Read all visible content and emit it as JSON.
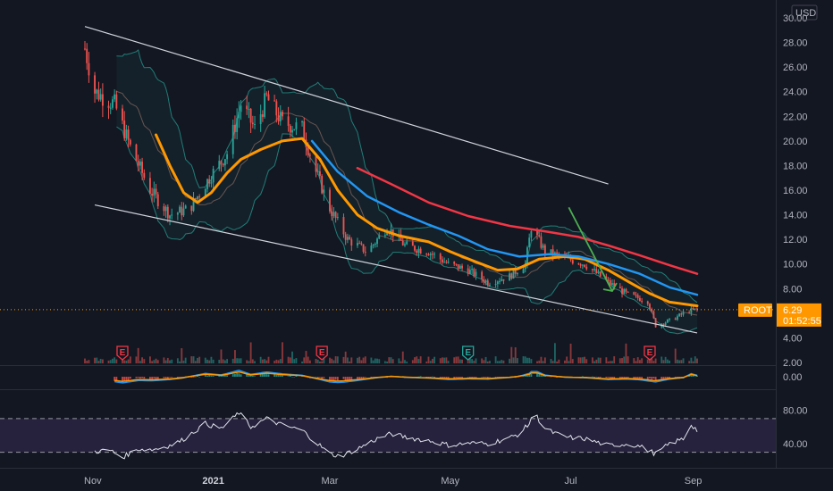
{
  "currency": "USD",
  "symbol_badge": {
    "symbol": "ROOT",
    "price": "6.29",
    "countdown": "01:52:55",
    "color": "#ff9800"
  },
  "colors": {
    "background": "#131722",
    "up": "#26a69a",
    "down": "#ef5350",
    "ema_fast": "#ff9800",
    "ema_mid": "#2196f3",
    "ema_slow": "#f23645",
    "bollinger": "#26a69a",
    "channel": "#d1d4dc",
    "arrow": "#4caf50",
    "rsi_band": "#7e57c2"
  },
  "earnings_markers": [
    {
      "label": "E",
      "date": "2020-11-16",
      "color": "#f23645"
    },
    {
      "label": "E",
      "date": "2021-02-25",
      "color": "#f23645"
    },
    {
      "label": "E",
      "date": "2021-05-10",
      "color": "#26a69a"
    },
    {
      "label": "E",
      "date": "2021-08-10",
      "color": "#f23645"
    }
  ],
  "chart_data": [
    {
      "type": "candlestick",
      "title": "",
      "x_range": [
        "2020-10-28",
        "2021-09-03"
      ],
      "xticks": [
        {
          "date": "2020-11-01",
          "label": "Nov"
        },
        {
          "date": "2021-01-01",
          "label": "2021"
        },
        {
          "date": "2021-03-01",
          "label": "Mar"
        },
        {
          "date": "2021-05-01",
          "label": "May"
        },
        {
          "date": "2021-07-01",
          "label": "Jul"
        },
        {
          "date": "2021-09-01",
          "label": "Sep"
        }
      ],
      "ylim": [
        2,
        30
      ],
      "yticks": [
        "2.00",
        "4.00",
        "6.00",
        "8.00",
        "10.00",
        "12.00",
        "14.00",
        "16.00",
        "18.00",
        "20.00",
        "22.00",
        "24.00",
        "26.00",
        "28.00",
        "30.00"
      ],
      "price_anchors": [
        {
          "date": "2020-10-28",
          "close": 27.5
        },
        {
          "date": "2020-11-02",
          "close": 24.0
        },
        {
          "date": "2020-11-12",
          "close": 23.0
        },
        {
          "date": "2020-11-20",
          "close": 19.5
        },
        {
          "date": "2020-11-30",
          "close": 16.0
        },
        {
          "date": "2020-12-10",
          "close": 14.0
        },
        {
          "date": "2020-12-20",
          "close": 14.5
        },
        {
          "date": "2020-12-30",
          "close": 17.0
        },
        {
          "date": "2021-01-08",
          "close": 19.0
        },
        {
          "date": "2021-01-15",
          "close": 23.0
        },
        {
          "date": "2021-01-22",
          "close": 21.0
        },
        {
          "date": "2021-01-28",
          "close": 23.5
        },
        {
          "date": "2021-02-05",
          "close": 21.5
        },
        {
          "date": "2021-02-15",
          "close": 21.0
        },
        {
          "date": "2021-02-22",
          "close": 17.5
        },
        {
          "date": "2021-03-01",
          "close": 14.5
        },
        {
          "date": "2021-03-10",
          "close": 12.0
        },
        {
          "date": "2021-03-20",
          "close": 11.0
        },
        {
          "date": "2021-03-30",
          "close": 13.0
        },
        {
          "date": "2021-04-08",
          "close": 11.5
        },
        {
          "date": "2021-04-20",
          "close": 11.0
        },
        {
          "date": "2021-04-30",
          "close": 10.0
        },
        {
          "date": "2021-05-10",
          "close": 9.5
        },
        {
          "date": "2021-05-20",
          "close": 8.5
        },
        {
          "date": "2021-05-31",
          "close": 9.0
        },
        {
          "date": "2021-06-08",
          "close": 10.0
        },
        {
          "date": "2021-06-11",
          "close": 13.0
        },
        {
          "date": "2021-06-18",
          "close": 11.0
        },
        {
          "date": "2021-06-28",
          "close": 10.5
        },
        {
          "date": "2021-07-08",
          "close": 10.0
        },
        {
          "date": "2021-07-20",
          "close": 8.5
        },
        {
          "date": "2021-07-30",
          "close": 7.5
        },
        {
          "date": "2021-08-09",
          "close": 7.0
        },
        {
          "date": "2021-08-13",
          "close": 5.0
        },
        {
          "date": "2021-08-20",
          "close": 5.4
        },
        {
          "date": "2021-08-30",
          "close": 6.2
        },
        {
          "date": "2021-09-03",
          "close": 6.3
        }
      ],
      "series": [
        {
          "name": "",
          "role": "ema_fast",
          "points": [
            [
              "2020-12-03",
              20.5
            ],
            [
              "2020-12-10",
              18.0
            ],
            [
              "2020-12-17",
              15.8
            ],
            [
              "2020-12-24",
              15.0
            ],
            [
              "2020-12-31",
              15.8
            ],
            [
              "2021-01-08",
              17.4
            ],
            [
              "2021-01-15",
              18.5
            ],
            [
              "2021-01-25",
              19.3
            ],
            [
              "2021-02-05",
              20.0
            ],
            [
              "2021-02-15",
              20.2
            ],
            [
              "2021-02-24",
              18.5
            ],
            [
              "2021-03-05",
              16.0
            ],
            [
              "2021-03-15",
              14.0
            ],
            [
              "2021-03-25",
              12.9
            ],
            [
              "2021-04-05",
              12.3
            ],
            [
              "2021-04-20",
              11.8
            ],
            [
              "2021-05-01",
              11.0
            ],
            [
              "2021-05-12",
              10.3
            ],
            [
              "2021-05-25",
              9.5
            ],
            [
              "2021-06-04",
              9.6
            ],
            [
              "2021-06-15",
              10.4
            ],
            [
              "2021-06-28",
              10.6
            ],
            [
              "2021-07-08",
              10.4
            ],
            [
              "2021-07-20",
              9.5
            ],
            [
              "2021-08-01",
              8.4
            ],
            [
              "2021-08-10",
              7.6
            ],
            [
              "2021-08-20",
              6.9
            ],
            [
              "2021-09-03",
              6.6
            ]
          ]
        },
        {
          "name": "",
          "role": "ema_mid",
          "points": [
            [
              "2021-02-20",
              20.0
            ],
            [
              "2021-03-05",
              17.5
            ],
            [
              "2021-03-20",
              15.5
            ],
            [
              "2021-04-05",
              14.2
            ],
            [
              "2021-04-20",
              13.2
            ],
            [
              "2021-05-05",
              12.3
            ],
            [
              "2021-05-20",
              11.2
            ],
            [
              "2021-06-05",
              10.6
            ],
            [
              "2021-06-20",
              10.8
            ],
            [
              "2021-07-05",
              10.6
            ],
            [
              "2021-07-20",
              10.0
            ],
            [
              "2021-08-05",
              9.2
            ],
            [
              "2021-08-20",
              8.1
            ],
            [
              "2021-09-03",
              7.5
            ]
          ]
        },
        {
          "name": "",
          "role": "ema_slow",
          "points": [
            [
              "2021-03-15",
              17.8
            ],
            [
              "2021-04-01",
              16.5
            ],
            [
              "2021-04-20",
              15.0
            ],
            [
              "2021-05-10",
              13.9
            ],
            [
              "2021-05-31",
              13.1
            ],
            [
              "2021-06-20",
              12.6
            ],
            [
              "2021-07-05",
              12.2
            ],
            [
              "2021-07-20",
              11.5
            ],
            [
              "2021-08-05",
              10.7
            ],
            [
              "2021-08-20",
              9.9
            ],
            [
              "2021-09-03",
              9.2
            ]
          ]
        }
      ],
      "channel_lines": [
        {
          "from": [
            "2020-10-28",
            29.3
          ],
          "to": [
            "2021-07-20",
            16.5
          ]
        },
        {
          "from": [
            "2020-11-02",
            14.8
          ],
          "to": [
            "2021-09-03",
            4.4
          ]
        }
      ],
      "arrow": {
        "from": [
          "2021-06-30",
          14.6
        ],
        "to": [
          "2021-07-22",
          7.8
        ]
      },
      "last_price": 6.29
    },
    {
      "type": "line",
      "title": "",
      "ylim": [
        -0.6,
        0.6
      ],
      "yticks": [
        "0.00"
      ],
      "series": [
        {
          "name": "",
          "values": []
        }
      ]
    },
    {
      "type": "line",
      "title": "",
      "ylim": [
        20,
        90
      ],
      "yticks": [
        "40.00",
        "80.00"
      ],
      "band": [
        30,
        70
      ],
      "series": [
        {
          "name": "",
          "points": [
            [
              "2020-11-02",
              31
            ],
            [
              "2020-11-10",
              32
            ],
            [
              "2020-11-16",
              24
            ],
            [
              "2020-11-24",
              34
            ],
            [
              "2020-12-01",
              33
            ],
            [
              "2020-12-10",
              38
            ],
            [
              "2020-12-16",
              44
            ],
            [
              "2020-12-22",
              54
            ],
            [
              "2020-12-28",
              64
            ],
            [
              "2021-01-05",
              58
            ],
            [
              "2021-01-10",
              68
            ],
            [
              "2021-01-14",
              77
            ],
            [
              "2021-01-20",
              60
            ],
            [
              "2021-01-28",
              70
            ],
            [
              "2021-02-05",
              62
            ],
            [
              "2021-02-15",
              56
            ],
            [
              "2021-02-22",
              42
            ],
            [
              "2021-03-01",
              28
            ],
            [
              "2021-03-06",
              25
            ],
            [
              "2021-03-15",
              34
            ],
            [
              "2021-03-25",
              46
            ],
            [
              "2021-04-01",
              52
            ],
            [
              "2021-04-10",
              47
            ],
            [
              "2021-04-20",
              44
            ],
            [
              "2021-05-01",
              38
            ],
            [
              "2021-05-10",
              41
            ],
            [
              "2021-05-20",
              40
            ],
            [
              "2021-05-31",
              47
            ],
            [
              "2021-06-05",
              52
            ],
            [
              "2021-06-10",
              64
            ],
            [
              "2021-06-12",
              79
            ],
            [
              "2021-06-18",
              57
            ],
            [
              "2021-06-28",
              48
            ],
            [
              "2021-07-08",
              46
            ],
            [
              "2021-07-20",
              38
            ],
            [
              "2021-07-30",
              40
            ],
            [
              "2021-08-05",
              37
            ],
            [
              "2021-08-13",
              28
            ],
            [
              "2021-08-20",
              40
            ],
            [
              "2021-08-27",
              46
            ],
            [
              "2021-08-31",
              63
            ],
            [
              "2021-09-03",
              56
            ]
          ]
        }
      ]
    }
  ]
}
